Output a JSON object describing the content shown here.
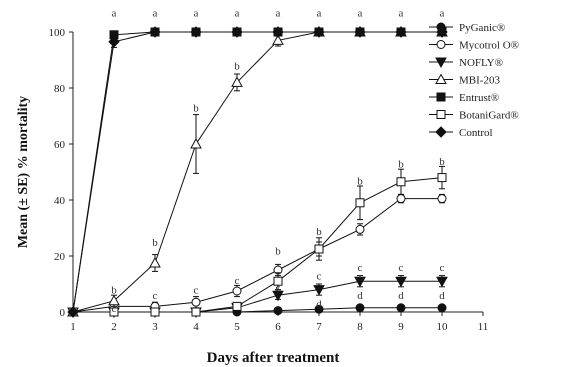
{
  "chart_data": {
    "type": "line",
    "xlabel": "Days after treatment",
    "ylabel": "Mean (± SE) % mortality",
    "xlim": [
      1,
      11
    ],
    "ylim": [
      0,
      100
    ],
    "x_ticks": [
      1,
      2,
      3,
      4,
      5,
      6,
      7,
      8,
      9,
      10,
      11
    ],
    "y_ticks": [
      0,
      20,
      40,
      60,
      80,
      100
    ],
    "grid": false,
    "legend_position": "right",
    "x": [
      1,
      2,
      3,
      4,
      5,
      6,
      7,
      8,
      9,
      10
    ],
    "series": [
      {
        "name": "PyGanic®",
        "marker": "circle-filled",
        "color": "#111111",
        "values": [
          0,
          0,
          0,
          0,
          0,
          0.5,
          1,
          1.5,
          1.5,
          1.5
        ],
        "errors": [
          0,
          0,
          0,
          0,
          0,
          0.5,
          0.5,
          0.5,
          0.5,
          0.5
        ]
      },
      {
        "name": "Mycotrol O®",
        "marker": "circle-open",
        "color": "#111111",
        "values": [
          0,
          2,
          2,
          3.5,
          7.5,
          15,
          22.5,
          29.5,
          40.5,
          40.5
        ],
        "errors": [
          0,
          1.5,
          1.5,
          2,
          2,
          2,
          2.5,
          2,
          1.5,
          1.5
        ]
      },
      {
        "name": "NOFLY®",
        "marker": "triangle-down-filled",
        "color": "#111111",
        "values": [
          0,
          0,
          0,
          0,
          1.5,
          6,
          8,
          11,
          11,
          11
        ],
        "errors": [
          0,
          0,
          0,
          0,
          1,
          1.5,
          2,
          2,
          2,
          2
        ]
      },
      {
        "name": "MBI-203",
        "marker": "triangle-up-open",
        "color": "#111111",
        "values": [
          0,
          4,
          17.5,
          60,
          82,
          97,
          100,
          100,
          100,
          100
        ],
        "errors": [
          0,
          2,
          3,
          10.5,
          3,
          2,
          0,
          0,
          0,
          0
        ]
      },
      {
        "name": "Entrust®",
        "marker": "square-filled",
        "color": "#111111",
        "values": [
          0,
          99,
          100,
          100,
          100,
          100,
          100,
          100,
          100,
          100
        ],
        "errors": [
          0,
          0.5,
          0,
          0,
          0,
          0,
          0,
          0,
          0,
          0
        ]
      },
      {
        "name": "BotaniGard®",
        "marker": "square-open",
        "color": "#111111",
        "values": [
          0,
          0,
          0,
          0,
          2,
          11,
          22.5,
          39,
          46.5,
          48
        ],
        "errors": [
          0,
          0,
          0,
          0,
          1,
          3,
          4,
          6,
          4.5,
          4
        ]
      },
      {
        "name": "Control",
        "marker": "diamond-filled",
        "color": "#111111",
        "values": [
          0,
          96.5,
          100,
          100,
          100,
          100,
          100,
          100,
          100,
          100
        ],
        "errors": [
          0,
          2,
          0,
          0,
          0,
          0,
          0,
          0,
          0,
          0
        ]
      }
    ],
    "annotations": [
      {
        "x": 2,
        "y": 107,
        "text": "a"
      },
      {
        "x": 3,
        "y": 107,
        "text": "a"
      },
      {
        "x": 4,
        "y": 107,
        "text": "a"
      },
      {
        "x": 5,
        "y": 107,
        "text": "a"
      },
      {
        "x": 6,
        "y": 107,
        "text": "a"
      },
      {
        "x": 7,
        "y": 107,
        "text": "a"
      },
      {
        "x": 8,
        "y": 107,
        "text": "a"
      },
      {
        "x": 9,
        "y": 107,
        "text": "a"
      },
      {
        "x": 10,
        "y": 107,
        "text": "a"
      },
      {
        "x": 2,
        "y": 8,
        "text": "b"
      },
      {
        "x": 3,
        "y": 25,
        "text": "b"
      },
      {
        "x": 4,
        "y": 73,
        "text": "b"
      },
      {
        "x": 5,
        "y": 88,
        "text": "b"
      },
      {
        "x": 6,
        "y": 22,
        "text": "b"
      },
      {
        "x": 7,
        "y": 29,
        "text": "b"
      },
      {
        "x": 8,
        "y": 47,
        "text": "b"
      },
      {
        "x": 9,
        "y": 53,
        "text": "b"
      },
      {
        "x": 10,
        "y": 54,
        "text": "b"
      },
      {
        "x": 2,
        "y": 1.5,
        "text": "c"
      },
      {
        "x": 3,
        "y": 6,
        "text": "c"
      },
      {
        "x": 4,
        "y": 8,
        "text": "c"
      },
      {
        "x": 5,
        "y": 11.5,
        "text": "c"
      },
      {
        "x": 6,
        "y": 9,
        "text": "c"
      },
      {
        "x": 7,
        "y": 13,
        "text": "c"
      },
      {
        "x": 8,
        "y": 16,
        "text": "c"
      },
      {
        "x": 9,
        "y": 16,
        "text": "c"
      },
      {
        "x": 10,
        "y": 16,
        "text": "c"
      },
      {
        "x": 7,
        "y": 3,
        "text": "d"
      },
      {
        "x": 8,
        "y": 6,
        "text": "d"
      },
      {
        "x": 9,
        "y": 6,
        "text": "d"
      },
      {
        "x": 10,
        "y": 6,
        "text": "d"
      }
    ]
  }
}
